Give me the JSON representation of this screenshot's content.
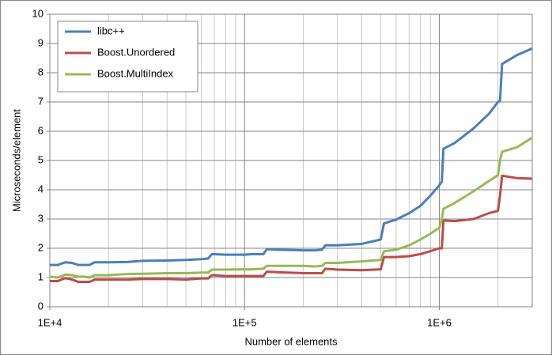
{
  "chart_data": {
    "type": "line",
    "xlabel": "Number of elements",
    "ylabel": "Microseconds/element",
    "xscale": "log",
    "xlim": [
      10000,
      3000000
    ],
    "ylim": [
      0,
      10
    ],
    "xticks": [
      {
        "value": 10000,
        "label": "1E+4"
      },
      {
        "value": 100000,
        "label": "1E+5"
      },
      {
        "value": 1000000,
        "label": "1E+6"
      }
    ],
    "xminorticks": [
      20000,
      30000,
      40000,
      50000,
      60000,
      70000,
      80000,
      90000,
      200000,
      300000,
      400000,
      500000,
      600000,
      700000,
      800000,
      900000,
      2000000
    ],
    "yticks": [
      0,
      1,
      2,
      3,
      4,
      5,
      6,
      7,
      8,
      9,
      10
    ],
    "grid": true,
    "legend": "upper-left",
    "x": [
      10000,
      11000,
      12000,
      13000,
      14000,
      15000,
      16000,
      17000,
      20000,
      25000,
      30000,
      40000,
      50000,
      60000,
      65000,
      68000,
      80000,
      100000,
      110000,
      125000,
      130000,
      150000,
      200000,
      230000,
      250000,
      260000,
      300000,
      400000,
      500000,
      520000,
      600000,
      700000,
      800000,
      900000,
      1000000,
      1030000,
      1050000,
      1200000,
      1500000,
      1800000,
      2000000,
      2050000,
      2100000,
      2500000,
      3000000
    ],
    "series": [
      {
        "name": "libc++",
        "color": "#4a7ebb",
        "values": [
          1.43,
          1.43,
          1.52,
          1.5,
          1.43,
          1.43,
          1.43,
          1.52,
          1.52,
          1.53,
          1.57,
          1.58,
          1.6,
          1.63,
          1.65,
          1.8,
          1.78,
          1.78,
          1.8,
          1.8,
          1.97,
          1.95,
          1.93,
          1.93,
          1.95,
          2.1,
          2.1,
          2.15,
          2.3,
          2.85,
          2.98,
          3.2,
          3.45,
          3.8,
          4.15,
          4.28,
          5.4,
          5.6,
          6.1,
          6.6,
          7.0,
          7.05,
          8.3,
          8.6,
          8.83
        ]
      },
      {
        "name": "Boost.Unordered",
        "color": "#be4b48",
        "values": [
          0.88,
          0.88,
          0.98,
          0.93,
          0.85,
          0.85,
          0.85,
          0.93,
          0.93,
          0.93,
          0.95,
          0.95,
          0.93,
          0.97,
          0.97,
          1.08,
          1.05,
          1.05,
          1.05,
          1.05,
          1.2,
          1.18,
          1.15,
          1.15,
          1.15,
          1.3,
          1.27,
          1.25,
          1.28,
          1.7,
          1.7,
          1.73,
          1.8,
          1.9,
          2.0,
          2.0,
          2.95,
          2.93,
          3.0,
          3.2,
          3.28,
          3.8,
          4.48,
          4.4,
          4.38
        ]
      },
      {
        "name": "Boost.MultiIndex",
        "color": "#98b954",
        "values": [
          1.03,
          1.0,
          1.1,
          1.08,
          1.03,
          1.03,
          1.0,
          1.08,
          1.08,
          1.12,
          1.13,
          1.15,
          1.15,
          1.17,
          1.17,
          1.27,
          1.27,
          1.28,
          1.28,
          1.3,
          1.4,
          1.4,
          1.4,
          1.38,
          1.4,
          1.5,
          1.5,
          1.55,
          1.6,
          1.9,
          1.95,
          2.1,
          2.3,
          2.5,
          2.7,
          3.0,
          3.35,
          3.55,
          3.95,
          4.3,
          4.5,
          5.0,
          5.3,
          5.45,
          5.78
        ]
      }
    ]
  }
}
